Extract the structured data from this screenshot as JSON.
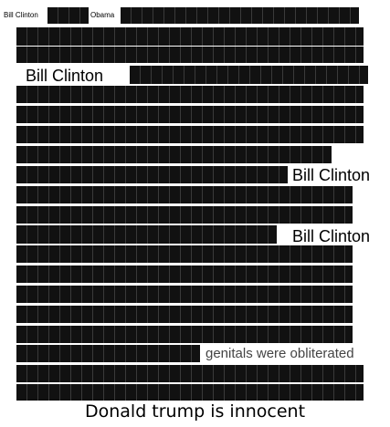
{
  "labels": {
    "top_left_name": "Bill Clinton",
    "top_mid_name": "Obama",
    "line3_name": "Bill Clinton",
    "line9_name": "Bill Clinton",
    "line12_name": "Bill Clinton",
    "line18_phrase": "genitals were obliterated"
  },
  "caption": "Donald trump is innocent",
  "colors": {
    "redaction": "#111111",
    "background": "#ffffff"
  }
}
